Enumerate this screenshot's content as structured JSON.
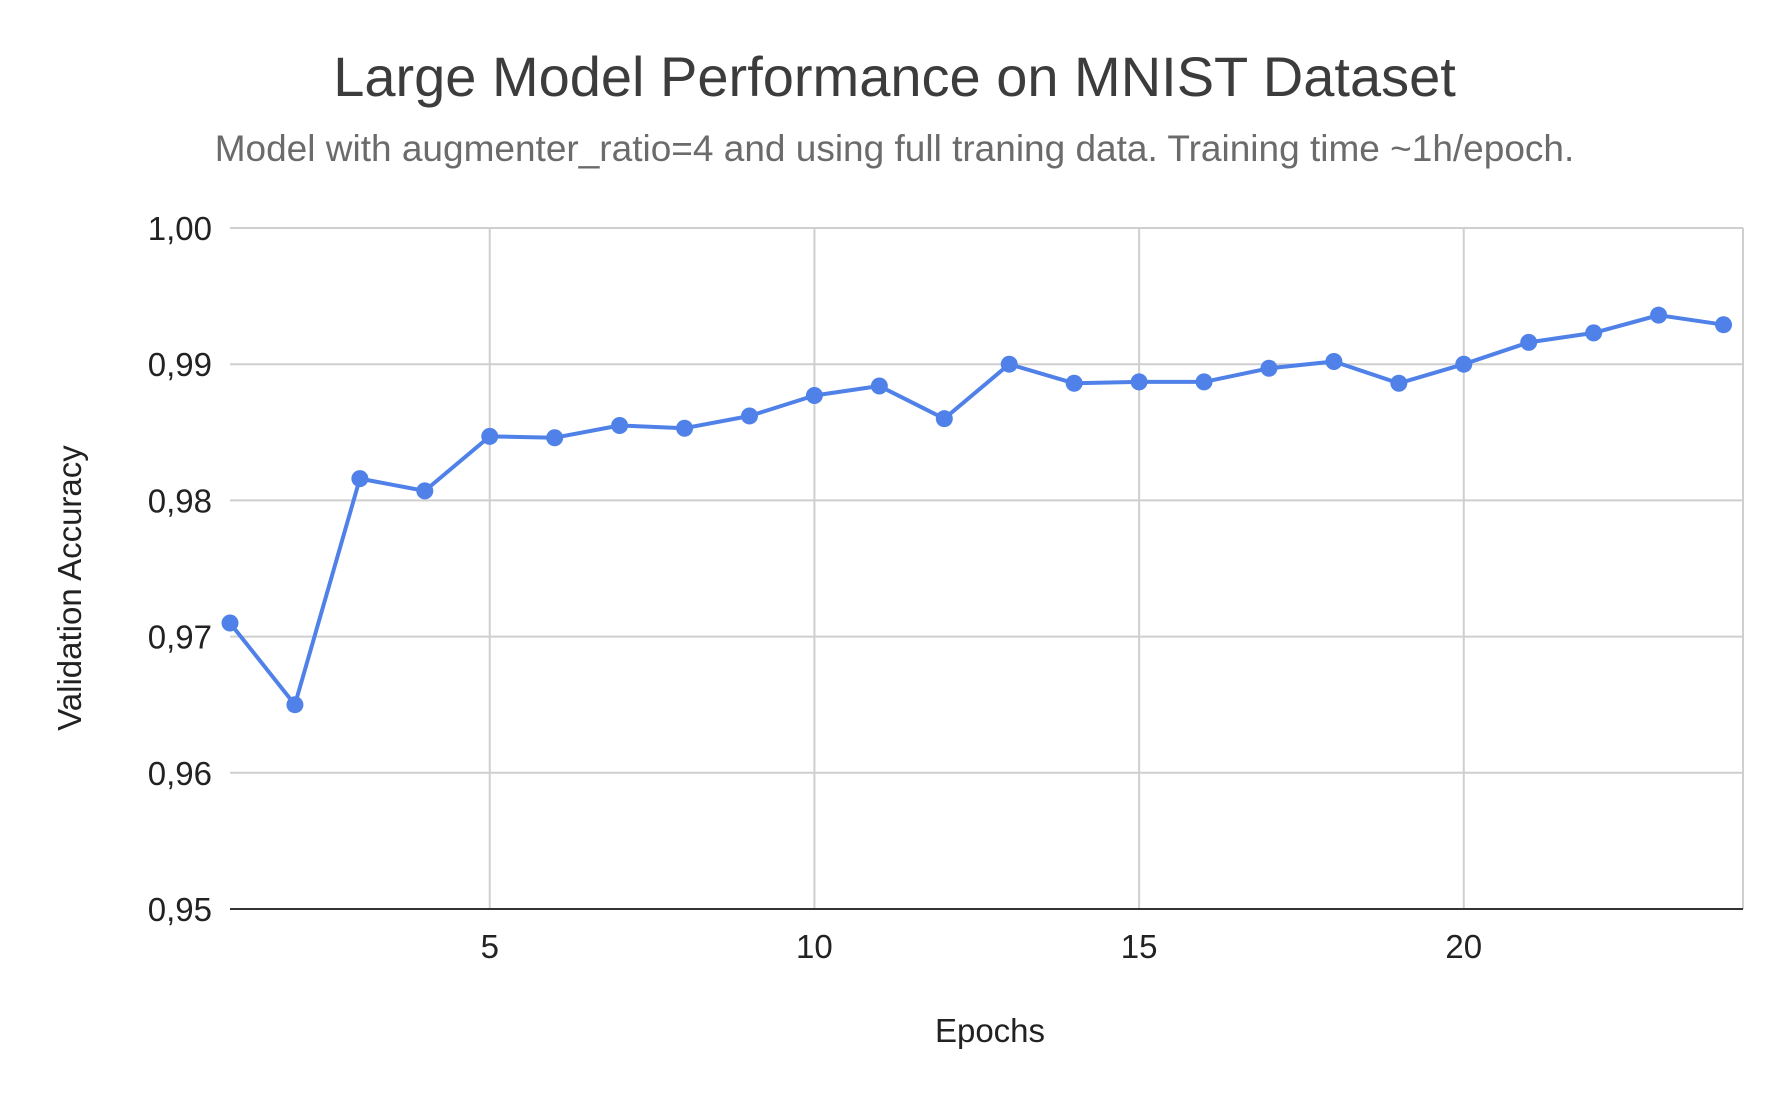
{
  "chart_data": {
    "type": "line",
    "title": "Large Model Performance on MNIST Dataset",
    "subtitle": "Model with augmenter_ratio=4 and using full traning data. Training time ~1h/epoch.",
    "xlabel": "Epochs",
    "ylabel": "Validation Accuracy",
    "x": [
      1,
      2,
      3,
      4,
      5,
      6,
      7,
      8,
      9,
      10,
      11,
      12,
      13,
      14,
      15,
      16,
      17,
      18,
      19,
      20,
      21,
      22,
      23,
      24
    ],
    "series": [
      {
        "values": [
          0.971,
          0.965,
          0.9816,
          0.9807,
          0.9847,
          0.9846,
          0.9855,
          0.9853,
          0.9862,
          0.9877,
          0.9884,
          0.986,
          0.99,
          0.9886,
          0.9887,
          0.9887,
          0.9897,
          0.9902,
          0.9886,
          0.99,
          0.9916,
          0.9923,
          0.9936,
          0.9929
        ],
        "color": "#4f81e8"
      }
    ],
    "xlim": [
      1,
      24.3
    ],
    "ylim": [
      0.95,
      1.0
    ],
    "xticks": [
      5,
      10,
      15,
      20
    ],
    "xtick_labels": [
      "5",
      "10",
      "15",
      "20"
    ],
    "yticks": [
      0.95,
      0.96,
      0.97,
      0.98,
      0.99,
      1.0
    ],
    "ytick_labels": [
      "0,95",
      "0,96",
      "0,97",
      "0,98",
      "0,99",
      "1,00"
    ],
    "grid": true,
    "legend": "none"
  }
}
